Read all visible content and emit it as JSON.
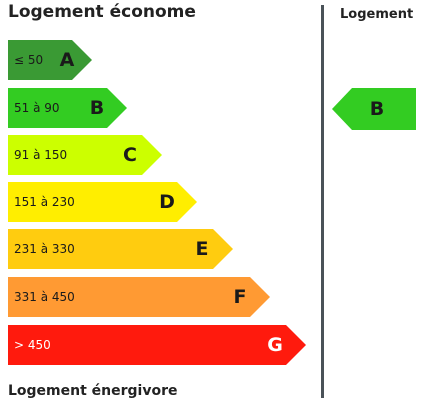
{
  "header": {
    "top_label": "Logement économe",
    "bottom_label": "Logement énergivore",
    "column_title": "Logement"
  },
  "scale": [
    {
      "letter": "A",
      "range": "≤ 50",
      "color": "#3a9a34"
    },
    {
      "letter": "B",
      "range": "51 à 90",
      "color": "#33cc22"
    },
    {
      "letter": "C",
      "range": "91 à 150",
      "color": "#ccff00"
    },
    {
      "letter": "D",
      "range": "151 à 230",
      "color": "#ffee00"
    },
    {
      "letter": "E",
      "range": "231 à 330",
      "color": "#ffcc0f"
    },
    {
      "letter": "F",
      "range": "331 à 450",
      "color": "#ff9a33"
    },
    {
      "letter": "G",
      "range": "> 450",
      "color": "#ff1a0d"
    }
  ],
  "current": {
    "letter": "B",
    "color": "#33cc22"
  }
}
